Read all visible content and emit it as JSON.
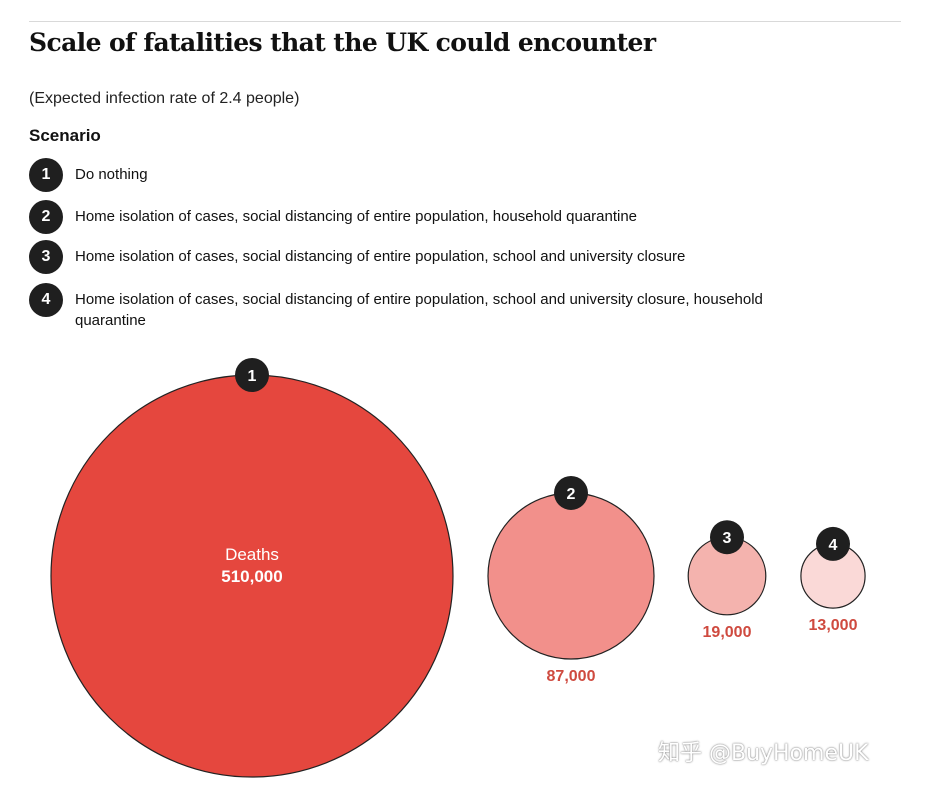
{
  "title": "Scale of fatalities that the UK could encounter",
  "subtitle": "(Expected infection rate of 2.4 people)",
  "scenario_heading": "Scenario",
  "scenarios": [
    {
      "num": "1",
      "text": "Do nothing"
    },
    {
      "num": "2",
      "text": "Home isolation of cases, social distancing of entire population, household quarantine"
    },
    {
      "num": "3",
      "text": "Home isolation of cases, social distancing of entire population, school and university closure"
    },
    {
      "num": "4",
      "text": "Home isolation of cases, social distancing of entire population, school and university closure, household quarantine"
    }
  ],
  "watermark": "知乎 @BuyHomeUK",
  "colors": {
    "badge": "#1f1f1f",
    "label": "#cf4a3f",
    "outline": "#222222"
  },
  "chart_data": {
    "type": "bubble",
    "title": "Scale of fatalities that the UK could encounter",
    "value_label": "Deaths",
    "categories": [
      "1",
      "2",
      "3",
      "4"
    ],
    "values": [
      510000,
      87000,
      19000,
      13000
    ],
    "value_labels": [
      "510,000",
      "87,000",
      "19,000",
      "13,000"
    ],
    "fill_colors": [
      "#e5473e",
      "#f2908b",
      "#f4b3ae",
      "#fad9d7"
    ],
    "legend": "none",
    "grid": false
  }
}
